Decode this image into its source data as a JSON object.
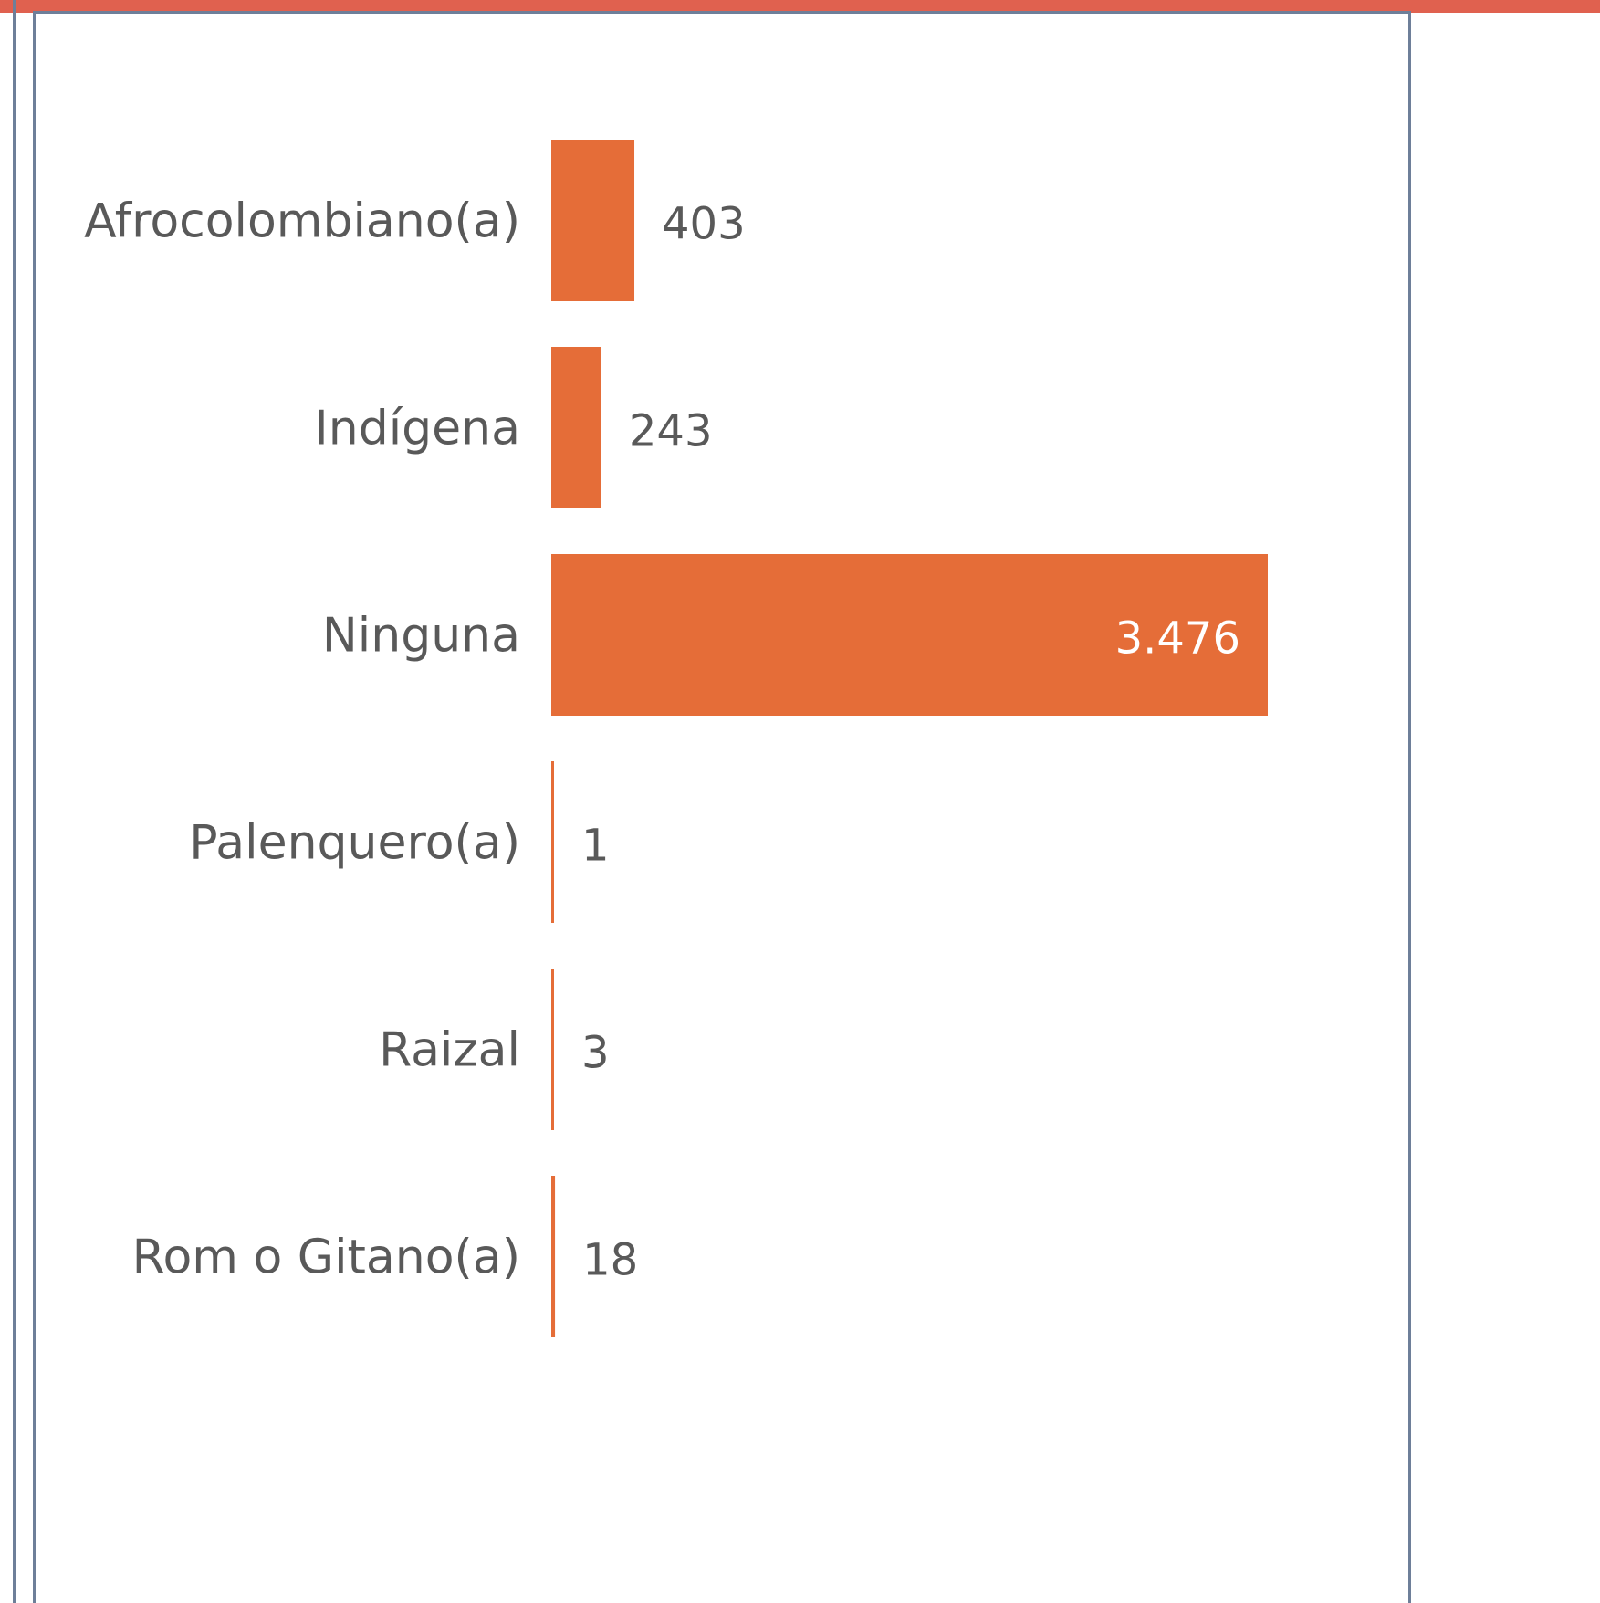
{
  "colors": {
    "bar": "#E56D38",
    "top_accent": "#E0614F",
    "frame": "#6E7F99",
    "text": "#595959"
  },
  "chart_data": {
    "type": "bar",
    "orientation": "horizontal",
    "categories": [
      "Afrocolombiano(a)",
      "Indígena",
      "Ninguna",
      "Palenquero(a)",
      "Raizal",
      "Rom o Gitano(a)"
    ],
    "values": [
      403,
      243,
      3476,
      1,
      3,
      18
    ],
    "value_labels": [
      "403",
      "243",
      "3.476",
      "1",
      "3",
      "18"
    ],
    "title": "",
    "xlabel": "",
    "ylabel": "",
    "xlim": [
      0,
      3476
    ],
    "grid": false,
    "legend": "none"
  }
}
